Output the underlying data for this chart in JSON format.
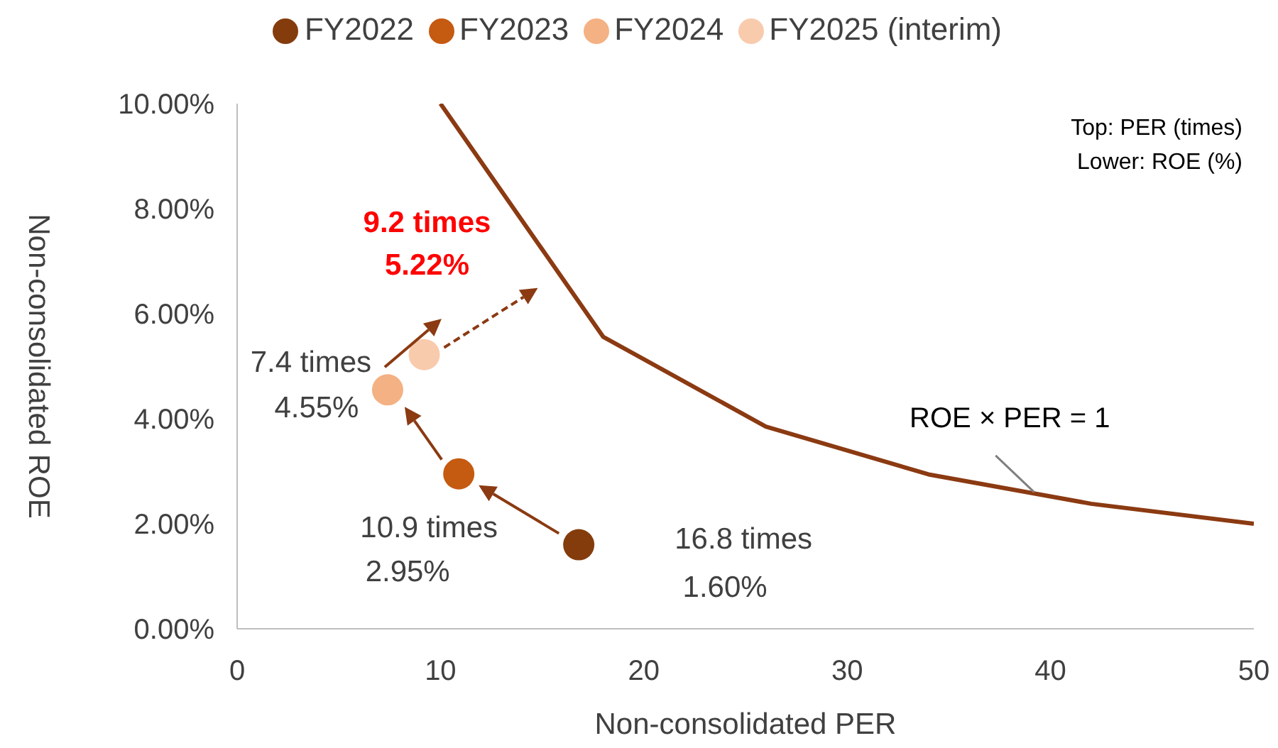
{
  "chart_data": {
    "type": "scatter",
    "xlabel": "Non-consolidated PER",
    "ylabel": "Non-consolidated ROE",
    "xlim": [
      0,
      50
    ],
    "xticks": [
      0,
      10,
      20,
      30,
      40,
      50
    ],
    "ylim": [
      0,
      10
    ],
    "yticks": [
      {
        "value": 0,
        "label": "0.00%"
      },
      {
        "value": 2,
        "label": "2.00%"
      },
      {
        "value": 4,
        "label": "4.00%"
      },
      {
        "value": 6,
        "label": "6.00%"
      },
      {
        "value": 8,
        "label": "8.00%"
      },
      {
        "value": 10,
        "label": "10.00%"
      }
    ],
    "legend": "top",
    "marker": "circle",
    "series": [
      {
        "name": "ROE × PER = 1",
        "type": "line",
        "marker": "none",
        "color": "#8b3a12",
        "x": [
          10,
          18,
          26,
          34,
          42,
          50
        ],
        "values": [
          10,
          5.56,
          3.85,
          2.94,
          2.38,
          2.0
        ]
      },
      {
        "name": "FY2022",
        "color": "#843c0c",
        "x": [
          16.8
        ],
        "values": [
          1.6
        ]
      },
      {
        "name": "FY2023",
        "color": "#c55a11",
        "x": [
          10.9
        ],
        "values": [
          2.95
        ]
      },
      {
        "name": "FY2024",
        "color": "#f4b183",
        "x": [
          7.4
        ],
        "values": [
          4.55
        ]
      },
      {
        "name": "FY2025 (interim)",
        "color": "#f8cbad",
        "x": [
          9.2
        ],
        "values": [
          5.22
        ]
      }
    ],
    "annotations": [
      "Top: PER (times)",
      "Lower: ROE (%)",
      "16.8 times\n1.60%",
      "10.9 times\n2.95%",
      "7.4 times\n4.55%",
      "9.2 times\n5.22%"
    ]
  }
}
